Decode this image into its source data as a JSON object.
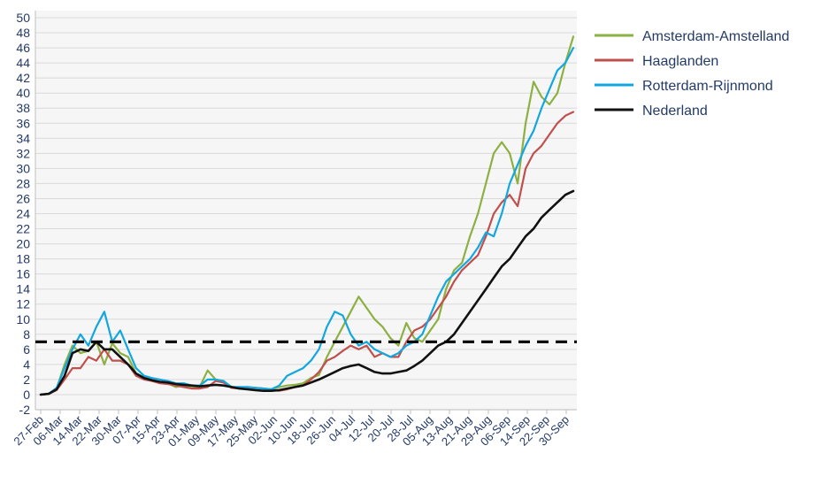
{
  "chart_data": {
    "type": "line",
    "title": "",
    "xlabel": "",
    "ylabel": "",
    "ylim": [
      -2,
      50
    ],
    "y_ticks": [
      -2,
      0,
      2,
      4,
      6,
      8,
      10,
      12,
      14,
      16,
      18,
      20,
      22,
      24,
      26,
      28,
      30,
      32,
      34,
      36,
      38,
      40,
      42,
      44,
      46,
      48,
      50
    ],
    "grid": "horizontal",
    "legend_position": "right-top",
    "x_tick_labels": [
      "27-Feb",
      "06-Mar",
      "14-Mar",
      "22-Mar",
      "30-Mar",
      "07-Apr",
      "15-Apr",
      "23-Apr",
      "01-May",
      "09-May",
      "17-May",
      "25-May",
      "02-Jun",
      "10-Jun",
      "18-Jun",
      "26-Jun",
      "04-Jul",
      "12-Jul",
      "20-Jul",
      "28-Jul",
      "05-Aug",
      "13-Aug",
      "21-Aug",
      "29-Aug",
      "06-Sep",
      "14-Sep",
      "22-Sep",
      "30-Sep"
    ],
    "reference_line": {
      "y": 7,
      "style": "dashed",
      "color": "#000000"
    },
    "series": [
      {
        "name": "Amsterdam-Amstelland",
        "color": "#8db043",
        "values": [
          0.0,
          0.1,
          0.8,
          4.0,
          6.5,
          5.5,
          5.8,
          7.0,
          4.0,
          6.8,
          5.5,
          5.0,
          2.8,
          2.3,
          2.0,
          1.6,
          1.5,
          1.0,
          1.2,
          0.9,
          1.0,
          3.2,
          2.0,
          1.8,
          1.0,
          0.8,
          1.0,
          0.9,
          0.8,
          0.7,
          1.0,
          1.2,
          1.3,
          1.5,
          2.2,
          2.6,
          5.0,
          7.0,
          9.0,
          11.0,
          13.0,
          11.5,
          10.0,
          9.0,
          7.5,
          6.5,
          9.5,
          7.5,
          7.0,
          8.5,
          10.0,
          14.0,
          16.5,
          17.5,
          21.0,
          24.0,
          28.0,
          32.0,
          33.5,
          32.0,
          28.0,
          36.0,
          41.5,
          39.5,
          38.5,
          40.0,
          44.0,
          47.5
        ]
      },
      {
        "name": "Haaglanden",
        "color": "#c0504d",
        "values": [
          0.0,
          0.1,
          0.6,
          2.0,
          3.5,
          3.5,
          5.0,
          4.5,
          6.0,
          4.5,
          4.5,
          4.0,
          2.5,
          2.0,
          1.8,
          1.5,
          1.4,
          1.2,
          1.0,
          0.8,
          0.8,
          1.0,
          1.8,
          1.6,
          0.9,
          0.8,
          0.9,
          0.9,
          0.8,
          0.6,
          0.5,
          0.7,
          1.0,
          1.2,
          2.0,
          3.0,
          4.5,
          5.0,
          5.8,
          6.5,
          6.0,
          6.5,
          5.0,
          5.5,
          5.0,
          5.0,
          7.0,
          8.5,
          9.0,
          10.0,
          11.5,
          13.0,
          15.0,
          16.5,
          17.5,
          18.5,
          21.0,
          24.0,
          25.5,
          26.5,
          25.0,
          30.0,
          32.0,
          33.0,
          34.5,
          36.0,
          37.0,
          37.5
        ]
      },
      {
        "name": "Rotterdam-Rijnmond",
        "color": "#13a7e0",
        "values": [
          0.0,
          0.1,
          0.9,
          3.5,
          6.0,
          8.0,
          6.5,
          9.0,
          11.0,
          7.0,
          8.5,
          6.0,
          3.5,
          2.5,
          2.2,
          2.0,
          1.8,
          1.5,
          1.5,
          1.2,
          1.2,
          2.0,
          2.0,
          1.8,
          1.0,
          1.0,
          1.0,
          0.9,
          0.8,
          0.7,
          1.2,
          2.5,
          3.0,
          3.5,
          4.5,
          6.0,
          9.0,
          11.0,
          10.5,
          8.0,
          6.5,
          7.0,
          6.0,
          5.5,
          5.0,
          5.5,
          6.5,
          7.0,
          8.0,
          10.5,
          13.0,
          15.0,
          16.0,
          17.0,
          18.0,
          19.5,
          21.5,
          21.0,
          24.0,
          28.0,
          30.5,
          33.0,
          35.0,
          38.0,
          40.5,
          43.0,
          44.0,
          46.0
        ]
      },
      {
        "name": "Nederland",
        "color": "#111111",
        "values": [
          0.0,
          0.1,
          0.7,
          2.5,
          5.5,
          6.0,
          5.8,
          7.0,
          6.0,
          6.0,
          5.0,
          4.0,
          2.8,
          2.2,
          1.9,
          1.7,
          1.6,
          1.4,
          1.3,
          1.2,
          1.1,
          1.2,
          1.3,
          1.2,
          1.0,
          0.8,
          0.7,
          0.6,
          0.5,
          0.5,
          0.6,
          0.8,
          1.0,
          1.2,
          1.6,
          2.0,
          2.5,
          3.0,
          3.5,
          3.8,
          4.0,
          3.5,
          3.0,
          2.8,
          2.8,
          3.0,
          3.2,
          3.8,
          4.5,
          5.5,
          6.5,
          7.0,
          8.0,
          9.5,
          11.0,
          12.5,
          14.0,
          15.5,
          17.0,
          18.0,
          19.5,
          21.0,
          22.0,
          23.5,
          24.5,
          25.5,
          26.5,
          27.0
        ]
      }
    ]
  }
}
